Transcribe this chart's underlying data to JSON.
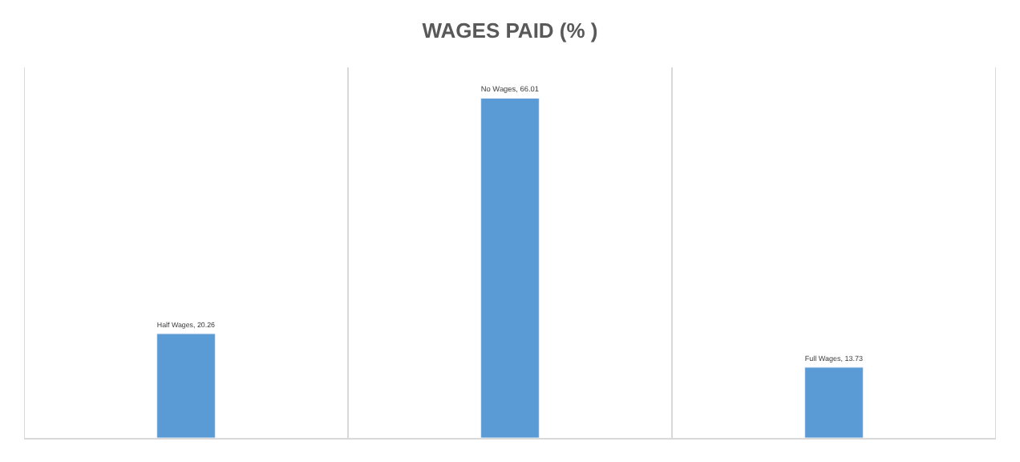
{
  "chart_data": {
    "type": "bar",
    "title": "WAGES PAID (% )",
    "categories": [
      null,
      null,
      null
    ],
    "values": [
      20.26,
      66.01,
      13.73
    ],
    "value_labels": [
      "Half Wages, 20.26",
      "No Wages, 66.01",
      "Full Wages, 13.73"
    ],
    "color": "#5b9bd5",
    "ylim": [
      0,
      72
    ],
    "grid": "x",
    "tick_labels": false,
    "legend": false
  }
}
